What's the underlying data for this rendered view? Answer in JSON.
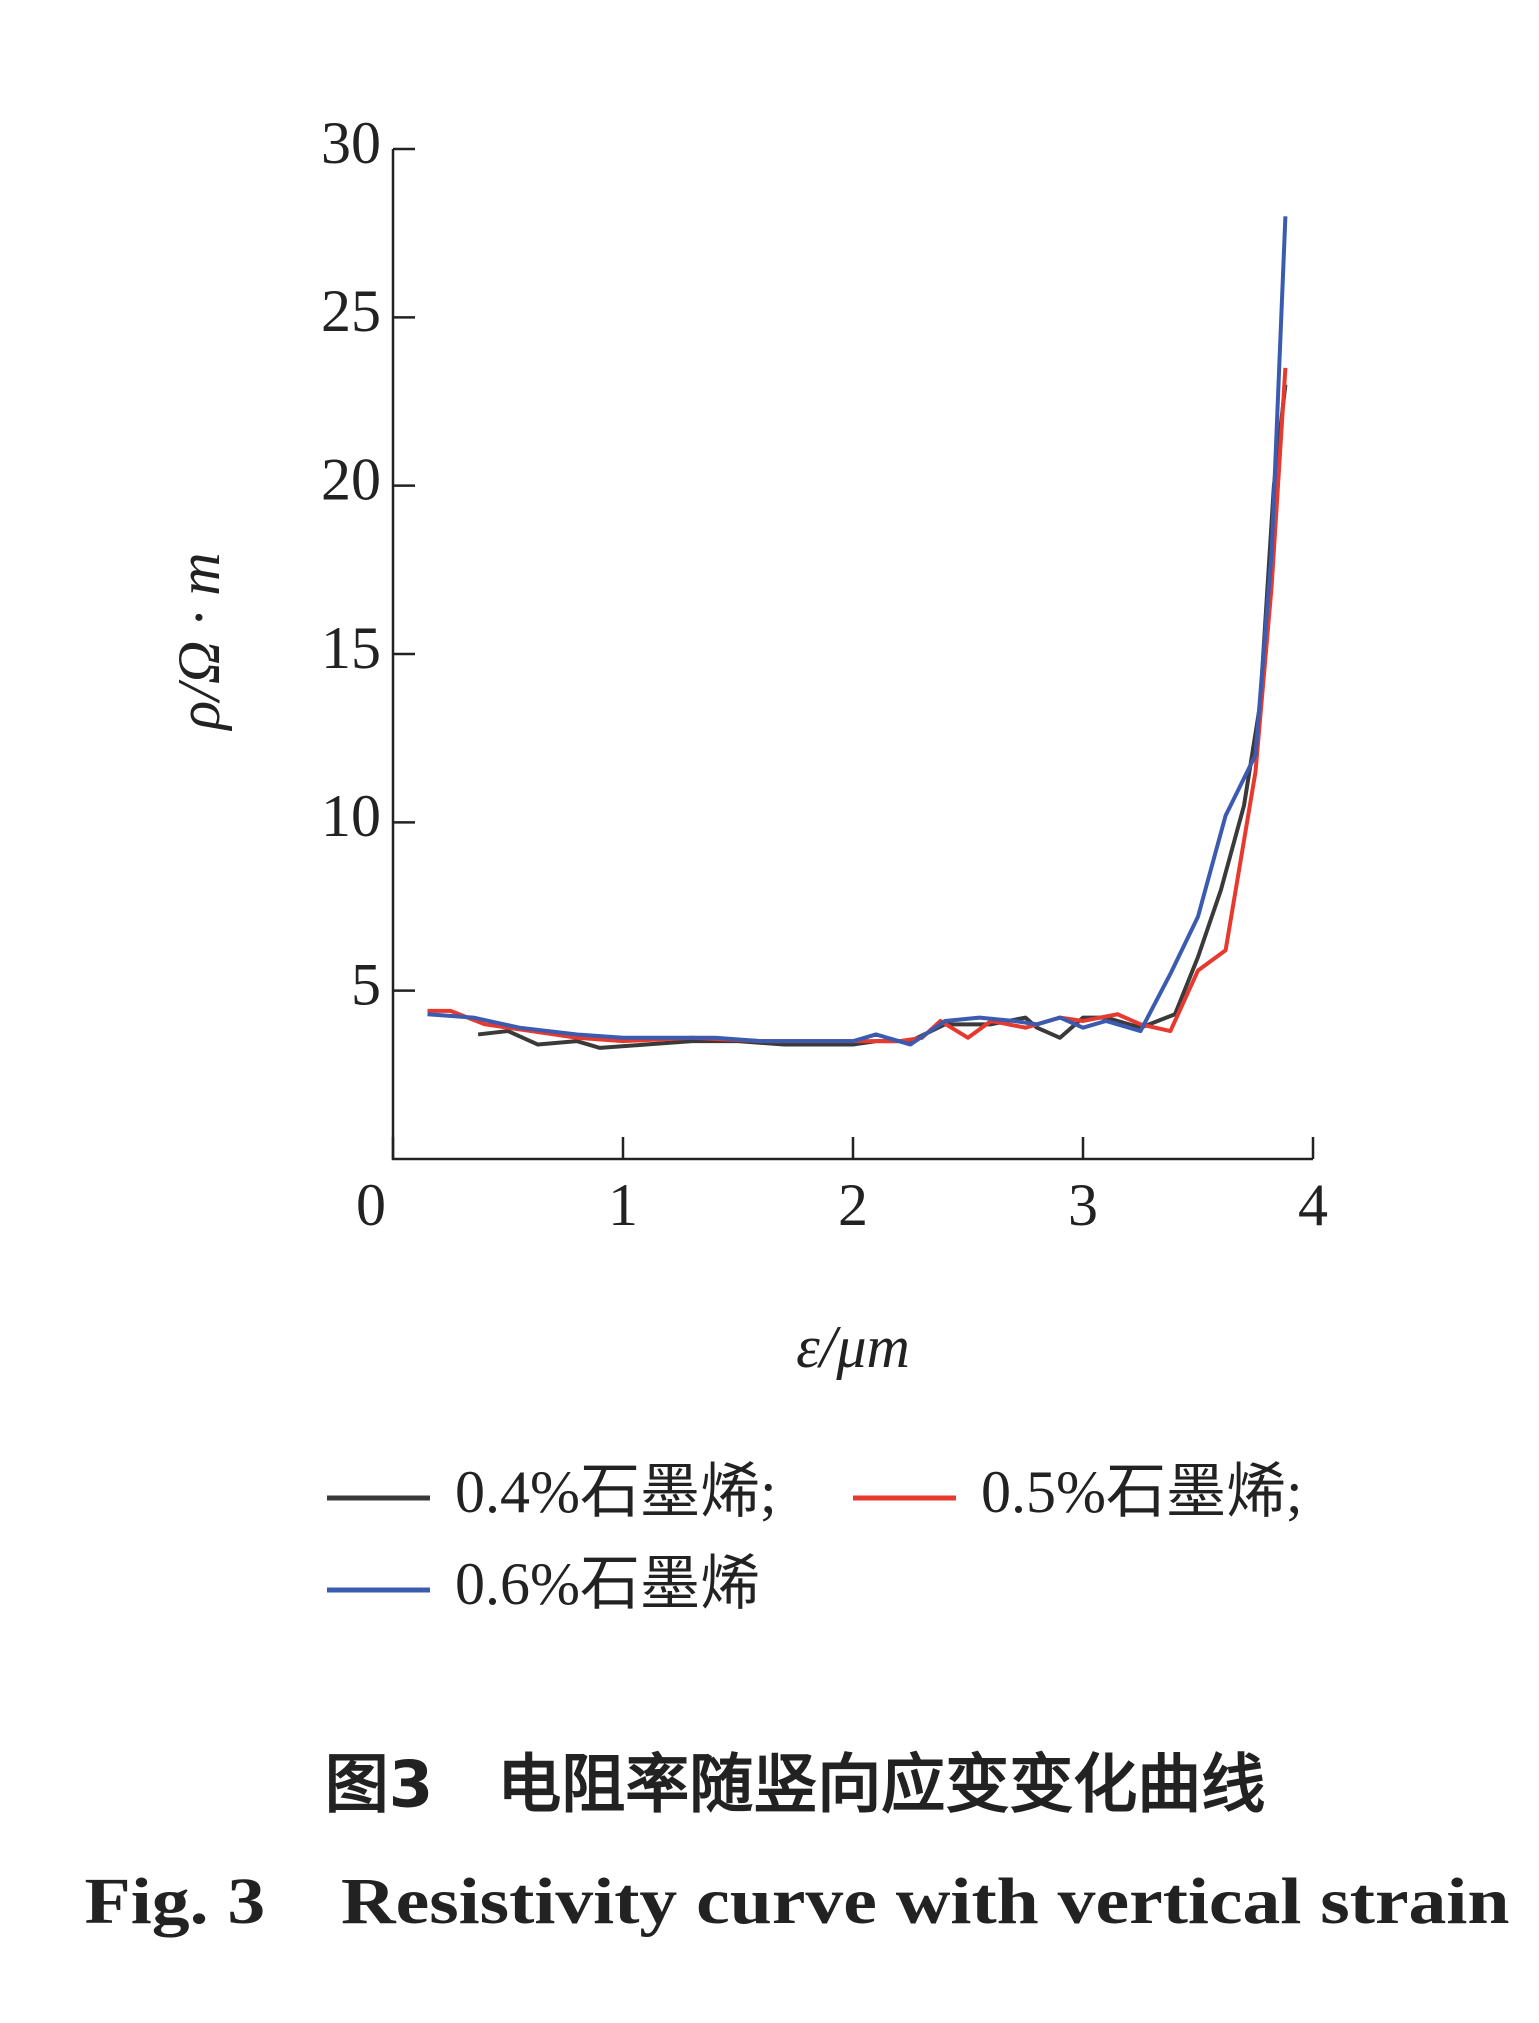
{
  "chart_data": {
    "type": "line",
    "y_label": "ρ/Ω · m",
    "x_label": "ε/μm",
    "caption_cn": "图3　电阻率随竖向应变变化曲线",
    "caption_en": "Fig. 3　Resistivity curve with vertical strain",
    "xlim": [
      0,
      4
    ],
    "xticks": [
      0,
      1,
      2,
      3,
      4
    ],
    "ylim": [
      0,
      30
    ],
    "yticks": [
      5,
      10,
      15,
      20,
      25,
      30
    ],
    "series": [
      {
        "name": "0.4%石墨烯;",
        "color": "#3a3a3a",
        "x": [
          0.37,
          0.5,
          0.63,
          0.8,
          0.9,
          1.1,
          1.3,
          1.5,
          1.7,
          2.0,
          2.1,
          2.25,
          2.4,
          2.6,
          2.75,
          2.8,
          2.9,
          3.0,
          3.1,
          3.25,
          3.4,
          3.5,
          3.6,
          3.7,
          3.77,
          3.83,
          3.88
        ],
        "values": [
          3.7,
          3.8,
          3.4,
          3.5,
          3.3,
          3.4,
          3.5,
          3.5,
          3.4,
          3.4,
          3.5,
          3.5,
          4.0,
          4.0,
          4.2,
          3.9,
          3.6,
          4.2,
          4.2,
          3.9,
          4.3,
          6.0,
          8.0,
          10.5,
          13.5,
          20,
          23
        ]
      },
      {
        "name": "0.5%石墨烯;",
        "color": "#e8392f",
        "x": [
          0.15,
          0.25,
          0.4,
          0.6,
          0.8,
          1.0,
          1.3,
          1.6,
          2.0,
          2.2,
          2.3,
          2.38,
          2.5,
          2.6,
          2.75,
          2.9,
          3.0,
          3.15,
          3.25,
          3.38,
          3.5,
          3.62,
          3.75,
          3.82,
          3.88
        ],
        "values": [
          4.4,
          4.4,
          4.0,
          3.8,
          3.6,
          3.5,
          3.6,
          3.5,
          3.5,
          3.5,
          3.6,
          4.1,
          3.6,
          4.1,
          3.9,
          4.2,
          4.1,
          4.3,
          4.0,
          3.8,
          5.6,
          6.2,
          11.5,
          17,
          23.5
        ]
      },
      {
        "name": "0.6%石墨烯",
        "color": "#3a5bb0",
        "x": [
          0.15,
          0.35,
          0.55,
          0.8,
          1.0,
          1.4,
          1.6,
          2.0,
          2.1,
          2.25,
          2.4,
          2.55,
          2.7,
          2.8,
          2.9,
          3.0,
          3.1,
          3.25,
          3.38,
          3.5,
          3.62,
          3.75,
          3.82,
          3.88
        ],
        "values": [
          4.3,
          4.2,
          3.9,
          3.7,
          3.6,
          3.6,
          3.5,
          3.5,
          3.7,
          3.4,
          4.1,
          4.2,
          4.1,
          4.0,
          4.2,
          3.9,
          4.1,
          3.8,
          5.5,
          7.2,
          10.2,
          12.0,
          18,
          28
        ]
      }
    ]
  }
}
